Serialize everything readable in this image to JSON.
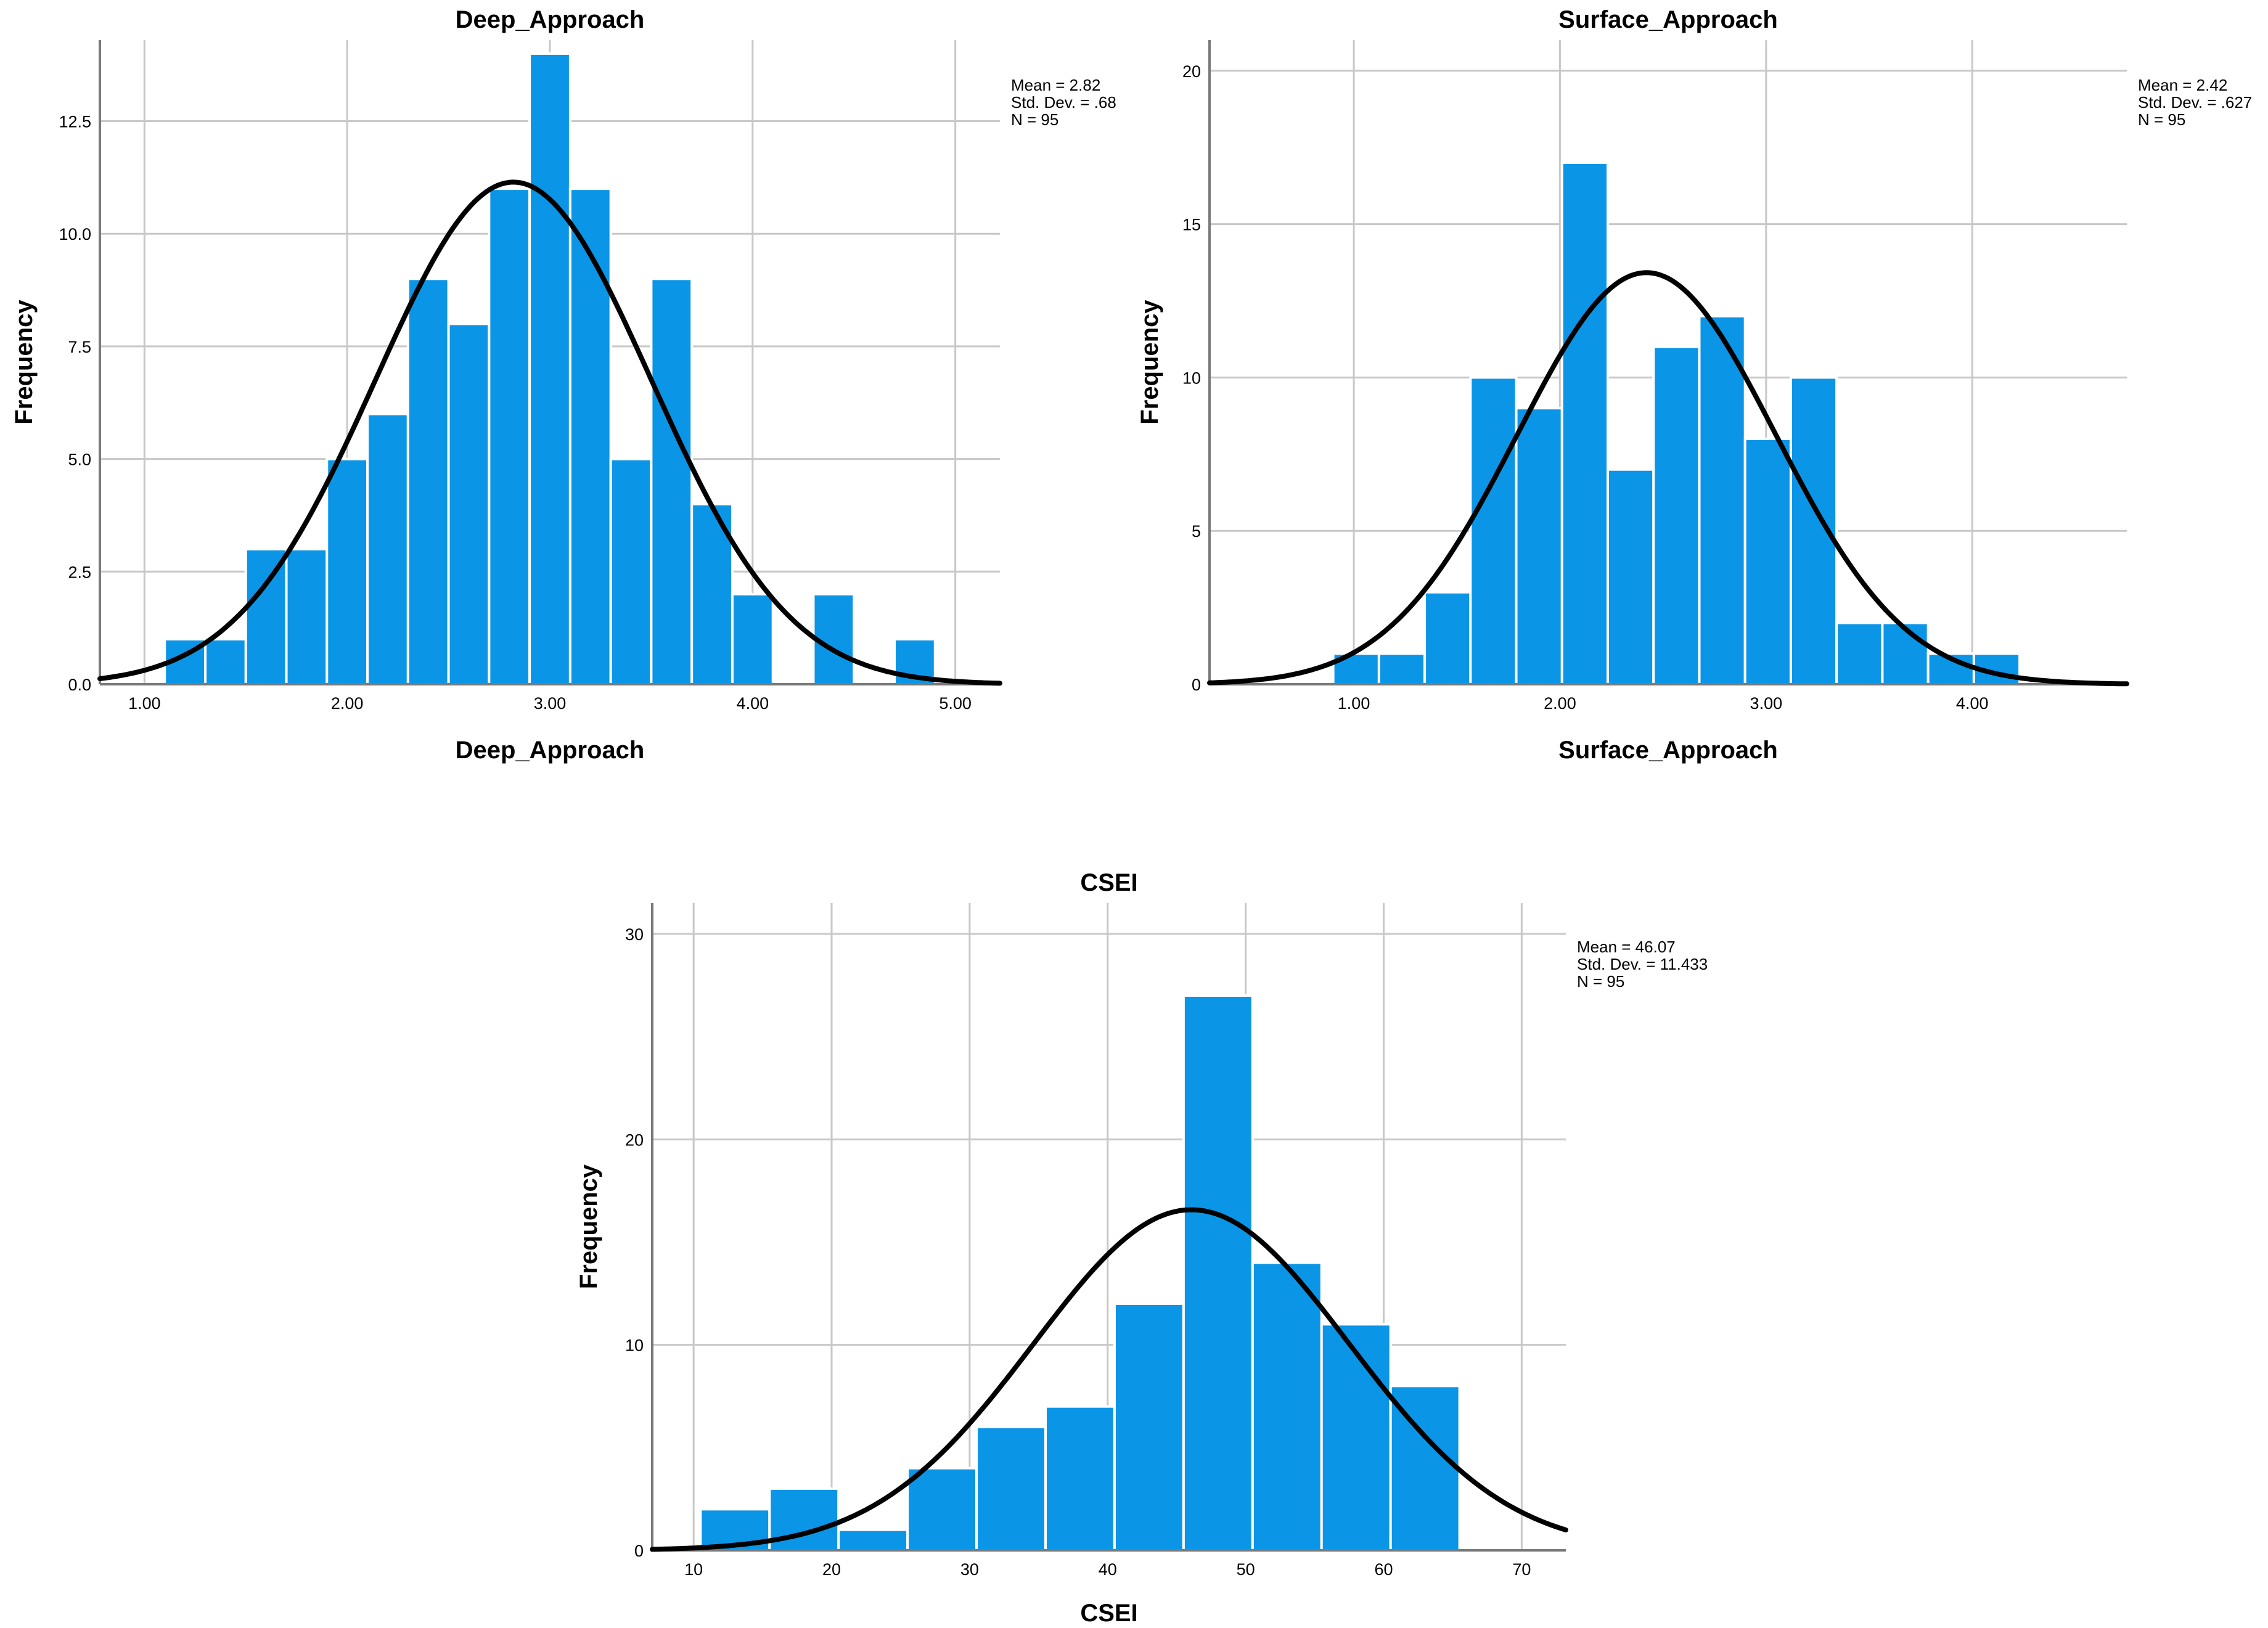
{
  "chart_data": [
    {
      "type": "bar",
      "subtype": "histogram",
      "title": "Deep_Approach",
      "xlabel": "Deep_Approach",
      "ylabel": "Frequency",
      "xlim": [
        0.78,
        5.22
      ],
      "ylim": [
        0,
        14.3
      ],
      "x_ticks": [
        "1.00",
        "2.00",
        "3.00",
        "4.00",
        "5.00"
      ],
      "x_tick_values": [
        1,
        2,
        3,
        4,
        5
      ],
      "y_ticks": [
        "0.0",
        "2.5",
        "5.0",
        "7.5",
        "10.0",
        "12.5"
      ],
      "y_tick_values": [
        0,
        2.5,
        5,
        7.5,
        10,
        12.5
      ],
      "bin_start": 1.1,
      "bin_width": 0.2,
      "values": [
        1,
        1,
        3,
        3,
        5,
        6,
        9,
        8,
        11,
        14,
        11,
        5,
        9,
        4,
        2,
        0,
        2,
        0,
        1
      ],
      "grid": true,
      "color": "#0b95e6",
      "normal_curve": {
        "mean": 2.82,
        "sd": 0.68,
        "n": 95
      },
      "stats": [
        "Mean = 2.82",
        "Std. Dev. = .68",
        "N = 95"
      ]
    },
    {
      "type": "bar",
      "subtype": "histogram",
      "title": "Surface_Approach",
      "xlabel": "Surface_Approach",
      "ylabel": "Frequency",
      "xlim": [
        0.3,
        4.75
      ],
      "ylim": [
        0,
        21
      ],
      "x_ticks": [
        "1.00",
        "2.00",
        "3.00",
        "4.00"
      ],
      "x_tick_values": [
        1,
        2,
        3,
        4
      ],
      "y_ticks": [
        "0",
        "5",
        "10",
        "15",
        "20"
      ],
      "y_tick_values": [
        0,
        5,
        10,
        15,
        20
      ],
      "bin_start": 0.9,
      "bin_width": 0.222,
      "values": [
        1,
        1,
        3,
        10,
        9,
        17,
        7,
        11,
        12,
        8,
        10,
        2,
        2,
        1,
        1
      ],
      "grid": true,
      "color": "#0b95e6",
      "normal_curve": {
        "mean": 2.42,
        "sd": 0.627,
        "n": 95
      },
      "stats": [
        "Mean = 2.42",
        "Std. Dev. = .627",
        "N = 95"
      ]
    },
    {
      "type": "bar",
      "subtype": "histogram",
      "title": "CSEI",
      "xlabel": "CSEI",
      "ylabel": "Frequency",
      "xlim": [
        7,
        73.2
      ],
      "ylim": [
        0,
        31.5
      ],
      "x_ticks": [
        "10",
        "20",
        "30",
        "40",
        "50",
        "60",
        "70"
      ],
      "x_tick_values": [
        10,
        20,
        30,
        40,
        50,
        60,
        70
      ],
      "y_ticks": [
        "0",
        "10",
        "20",
        "30"
      ],
      "y_tick_values": [
        0,
        10,
        20,
        30
      ],
      "bin_start": 10.5,
      "bin_width": 5,
      "values": [
        2,
        3,
        1,
        4,
        6,
        7,
        12,
        27,
        14,
        11,
        8
      ],
      "grid": true,
      "color": "#0b95e6",
      "normal_curve": {
        "mean": 46.07,
        "sd": 11.433,
        "n": 95
      },
      "stats": [
        "Mean = 46.07",
        "Std. Dev. = 11.433",
        "N = 95"
      ]
    }
  ]
}
